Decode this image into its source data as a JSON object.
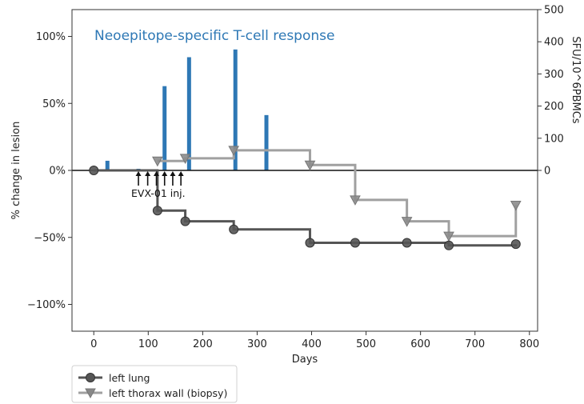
{
  "chart_data": {
    "type": "line",
    "title": "Neoepitope-specific T-cell response",
    "xlabel": "Days",
    "ylabel": "% change in lesion",
    "y2label": "SFU/10^6PBMCs",
    "xlim": [
      -40,
      815
    ],
    "ylim": [
      -120,
      120
    ],
    "y2lim": [
      -500,
      500
    ],
    "x_ticks": [
      0,
      100,
      200,
      300,
      400,
      500,
      600,
      700,
      800
    ],
    "y_ticks": [
      100,
      50,
      0,
      -50,
      -100
    ],
    "y_tick_labels": [
      "100%",
      "50%",
      "0%",
      "−50%",
      "−100%"
    ],
    "y2_ticks": [
      0,
      100,
      200,
      300,
      400,
      500
    ],
    "grid": false,
    "legend_position": "below-left",
    "series": [
      {
        "name": "left lung",
        "kind": "step",
        "marker": "circle",
        "color": "#555555",
        "points": [
          {
            "x": 0,
            "y": 0
          },
          {
            "x": 117,
            "y": -30
          },
          {
            "x": 168,
            "y": -38
          },
          {
            "x": 257,
            "y": -44
          },
          {
            "x": 397,
            "y": -54
          },
          {
            "x": 480,
            "y": -54
          },
          {
            "x": 575,
            "y": -54
          },
          {
            "x": 652,
            "y": -56
          },
          {
            "x": 775,
            "y": -55
          }
        ]
      },
      {
        "name": "left thorax wall (biopsy)",
        "kind": "step",
        "marker": "triangle-down",
        "color": "#a0a0a0",
        "points": [
          {
            "x": 117,
            "y": 7
          },
          {
            "x": 168,
            "y": 9
          },
          {
            "x": 257,
            "y": 15
          },
          {
            "x": 397,
            "y": 4
          },
          {
            "x": 480,
            "y": -22
          },
          {
            "x": 575,
            "y": -38
          },
          {
            "x": 652,
            "y": -49
          },
          {
            "x": 775,
            "y": -26
          }
        ]
      },
      {
        "name": "",
        "kind": "bar",
        "axis": "right",
        "color": "#2e78b5",
        "x": [
          25,
          82,
          130,
          175,
          260,
          317
        ],
        "values": [
          30,
          5,
          262,
          352,
          376,
          172
        ]
      }
    ],
    "annotations": {
      "injection_label": "EVX-01 inj.",
      "injection_days": [
        82,
        99,
        115,
        130,
        145,
        160
      ]
    }
  },
  "legend": {
    "items": [
      {
        "label": "left lung"
      },
      {
        "label": "left thorax wall (biopsy)"
      }
    ]
  }
}
